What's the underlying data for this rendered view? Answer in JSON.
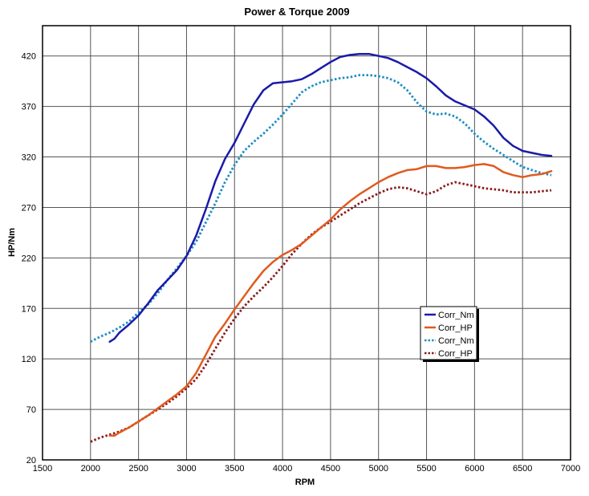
{
  "chart_data": {
    "type": "line",
    "title": "Power & Torque 2009",
    "xlabel": "RPM",
    "ylabel": "HP/Nm",
    "xlim": [
      1500,
      7000
    ],
    "ylim": [
      20,
      450
    ],
    "x_ticks": [
      1500,
      2000,
      2500,
      3000,
      3500,
      4000,
      4500,
      5000,
      5500,
      6000,
      6500,
      7000
    ],
    "y_ticks": [
      20,
      70,
      120,
      170,
      220,
      270,
      320,
      370,
      420
    ],
    "grid": true,
    "legend_position": "center-right",
    "series": [
      {
        "name": "Corr_Nm",
        "color": "#1a1aaa",
        "style": "solid",
        "x": [
          2200,
          2250,
          2300,
          2400,
          2500,
          2600,
          2700,
          2800,
          2900,
          3000,
          3100,
          3200,
          3300,
          3400,
          3500,
          3600,
          3700,
          3800,
          3900,
          4000,
          4100,
          4200,
          4300,
          4400,
          4500,
          4600,
          4700,
          4800,
          4900,
          5000,
          5100,
          5200,
          5300,
          5400,
          5500,
          5600,
          5700,
          5800,
          5900,
          6000,
          6100,
          6200,
          6300,
          6400,
          6500,
          6600,
          6700,
          6800
        ],
        "y": [
          137,
          140,
          146,
          154,
          163,
          175,
          188,
          198,
          208,
          222,
          242,
          268,
          296,
          318,
          334,
          353,
          372,
          386,
          393,
          394,
          395,
          397,
          402,
          408,
          414,
          419,
          421,
          422,
          422,
          420,
          418,
          414,
          409,
          404,
          398,
          390,
          381,
          375,
          371,
          367,
          360,
          351,
          339,
          331,
          326,
          324,
          322,
          321
        ]
      },
      {
        "name": "Corr_HP",
        "color": "#e05a1e",
        "style": "solid",
        "x": [
          2200,
          2250,
          2300,
          2400,
          2500,
          2600,
          2700,
          2800,
          2900,
          3000,
          3100,
          3200,
          3300,
          3400,
          3500,
          3600,
          3700,
          3800,
          3900,
          4000,
          4100,
          4200,
          4300,
          4400,
          4500,
          4600,
          4700,
          4800,
          4900,
          5000,
          5100,
          5200,
          5300,
          5400,
          5500,
          5600,
          5700,
          5800,
          5900,
          6000,
          6100,
          6200,
          6300,
          6400,
          6500,
          6600,
          6700,
          6800
        ],
        "y": [
          44,
          44,
          47,
          52,
          58,
          64,
          71,
          78,
          85,
          93,
          106,
          124,
          142,
          155,
          169,
          182,
          195,
          207,
          216,
          223,
          228,
          234,
          242,
          250,
          258,
          268,
          276,
          283,
          289,
          295,
          300,
          304,
          307,
          308,
          311,
          311,
          309,
          309,
          310,
          312,
          313,
          311,
          305,
          302,
          300,
          302,
          303,
          306
        ]
      },
      {
        "name": "Corr_Nm",
        "color": "#1c8ec4",
        "style": "dotted",
        "x": [
          2000,
          2100,
          2200,
          2300,
          2400,
          2500,
          2600,
          2700,
          2800,
          2900,
          3000,
          3100,
          3200,
          3300,
          3400,
          3500,
          3600,
          3700,
          3800,
          3900,
          4000,
          4100,
          4200,
          4300,
          4400,
          4500,
          4600,
          4700,
          4800,
          4900,
          5000,
          5100,
          5200,
          5300,
          5400,
          5500,
          5600,
          5700,
          5800,
          5900,
          6000,
          6100,
          6200,
          6300,
          6400,
          6500,
          6600,
          6700,
          6800
        ],
        "y": [
          137,
          142,
          146,
          151,
          157,
          166,
          174,
          185,
          198,
          210,
          222,
          236,
          255,
          274,
          295,
          312,
          326,
          335,
          343,
          352,
          362,
          373,
          384,
          390,
          394,
          396,
          398,
          399,
          401,
          401,
          400,
          398,
          394,
          386,
          374,
          365,
          362,
          363,
          360,
          353,
          343,
          335,
          328,
          322,
          316,
          310,
          307,
          304,
          302
        ]
      },
      {
        "name": "Corr_HP",
        "color": "#8b1a1a",
        "style": "dotted",
        "x": [
          2000,
          2100,
          2200,
          2300,
          2400,
          2500,
          2600,
          2700,
          2800,
          2900,
          3000,
          3100,
          3200,
          3300,
          3400,
          3500,
          3600,
          3700,
          3800,
          3900,
          4000,
          4100,
          4200,
          4300,
          4400,
          4500,
          4600,
          4700,
          4800,
          4900,
          5000,
          5100,
          5200,
          5300,
          5400,
          5500,
          5600,
          5700,
          5800,
          5900,
          6000,
          6100,
          6200,
          6300,
          6400,
          6500,
          6600,
          6700,
          6800
        ],
        "y": [
          38,
          42,
          45,
          48,
          52,
          58,
          64,
          70,
          76,
          83,
          91,
          100,
          114,
          130,
          146,
          160,
          172,
          182,
          191,
          201,
          212,
          224,
          234,
          243,
          250,
          256,
          262,
          268,
          274,
          279,
          284,
          288,
          290,
          289,
          286,
          283,
          286,
          292,
          295,
          293,
          291,
          289,
          288,
          287,
          285,
          285,
          285,
          286,
          287
        ]
      }
    ]
  }
}
